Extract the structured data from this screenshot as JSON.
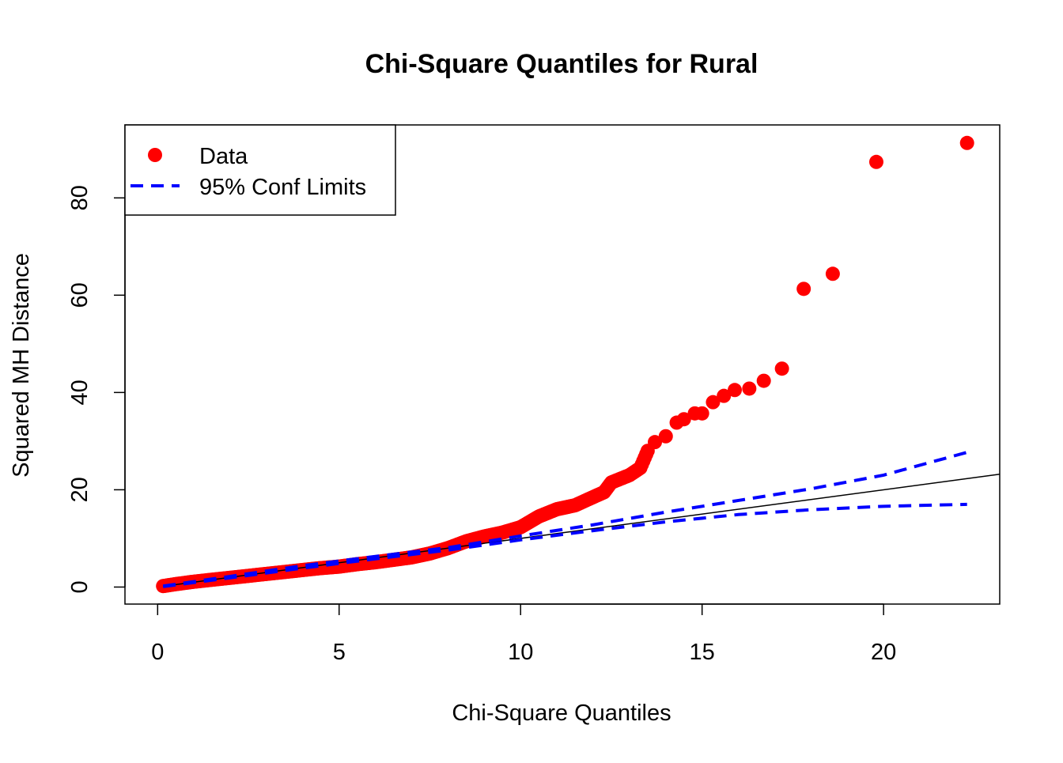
{
  "colors": {
    "data": "#ff0000",
    "conf_limits": "#0000ff",
    "reference_line": "#000000",
    "axes": "#000000",
    "background": "#ffffff"
  },
  "chart_data": {
    "type": "scatter",
    "title": "Chi-Square Quantiles for Rural",
    "xlabel": "Chi-Square Quantiles",
    "ylabel": "Squared MH Distance",
    "xlim": [
      -0.9,
      23.2
    ],
    "ylim": [
      -3.5,
      95.0
    ],
    "xticks": [
      0,
      5,
      10,
      15,
      20
    ],
    "yticks": [
      0,
      20,
      40,
      60,
      80
    ],
    "grid": false,
    "legend": {
      "position": "top-left",
      "entries": [
        {
          "label": "Data",
          "type": "point",
          "color": "#ff0000"
        },
        {
          "label": "95% Conf Limits",
          "type": "dashed-line",
          "color": "#0000ff"
        }
      ]
    },
    "series": [
      {
        "name": "Data",
        "type": "scatter",
        "smooth_points": {
          "x": [
            0.15,
            0.5,
            1.0,
            1.5,
            2.0,
            2.5,
            3.0,
            3.5,
            4.0,
            4.5,
            5.0,
            5.5,
            6.0,
            6.5,
            7.0,
            7.5,
            8.0,
            8.5,
            9.0,
            9.5,
            10.0,
            10.5,
            11.0,
            11.5,
            12.0,
            12.3,
            12.5,
            13.0,
            13.3,
            13.5
          ],
          "y": [
            0.2,
            0.6,
            1.1,
            1.5,
            1.9,
            2.3,
            2.7,
            3.1,
            3.5,
            3.9,
            4.2,
            4.7,
            5.1,
            5.6,
            6.1,
            6.9,
            8.0,
            9.4,
            10.4,
            11.2,
            12.3,
            14.5,
            16.0,
            16.8,
            18.5,
            19.5,
            21.5,
            23.0,
            24.5,
            28.0
          ]
        },
        "outliers": {
          "x": [
            13.7,
            14.0,
            14.3,
            14.5,
            14.8,
            15.0,
            15.3,
            15.6,
            15.9,
            16.3,
            16.7,
            17.2,
            17.8,
            18.6,
            19.8,
            22.3
          ],
          "y": [
            29.8,
            31.0,
            33.8,
            34.5,
            35.7,
            35.7,
            38.0,
            39.3,
            40.5,
            40.8,
            42.4,
            44.9,
            61.3,
            64.4,
            87.4,
            91.3
          ]
        }
      },
      {
        "name": "95% Conf Limits",
        "type": "dashed-line",
        "upper": {
          "x": [
            0.15,
            2,
            4,
            6,
            8,
            10,
            12,
            14,
            16,
            18,
            20,
            22.3
          ],
          "y": [
            0.2,
            2.2,
            4.4,
            6.3,
            8.1,
            10.5,
            12.8,
            15.4,
            17.8,
            20.2,
            23.0,
            27.7
          ]
        },
        "lower": {
          "x": [
            0.15,
            2,
            4,
            6,
            8,
            10,
            12,
            14,
            16,
            18,
            20,
            22.3
          ],
          "y": [
            0.1,
            1.9,
            3.9,
            5.8,
            7.6,
            9.7,
            11.6,
            13.4,
            14.9,
            15.9,
            16.6,
            17.0
          ]
        }
      },
      {
        "name": "Reference",
        "type": "line",
        "x": [
          0.15,
          23.2
        ],
        "y": [
          0.15,
          23.2
        ]
      }
    ]
  }
}
